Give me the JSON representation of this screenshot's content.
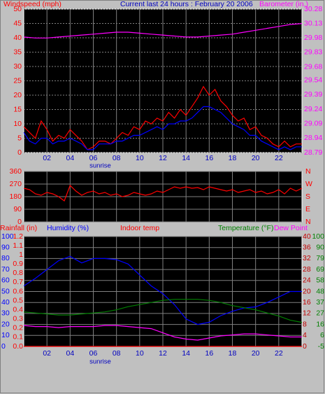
{
  "chart_data": [
    {
      "type": "line",
      "title": "Current last 24 hours : February 20 2006",
      "xlim": [
        0,
        24
      ],
      "xticks": [
        {
          "value": 2,
          "label": "02"
        },
        {
          "value": 4,
          "label": "04"
        },
        {
          "value": 6,
          "label": "06"
        },
        {
          "value": 8,
          "label": "08"
        },
        10,
        12,
        14,
        16,
        18,
        20,
        22
      ],
      "ylim": [
        0,
        50
      ],
      "yticks": [
        0,
        5,
        10,
        15,
        20,
        25,
        30,
        35,
        40,
        45,
        50
      ],
      "y2lim": [
        28.79,
        30.28
      ],
      "y2ticks": [
        28.79,
        28.94,
        29.09,
        29.24,
        29.39,
        29.54,
        29.68,
        29.83,
        29.98,
        30.13,
        30.28
      ],
      "annotation": {
        "text": "sunrise",
        "x": 6.6
      },
      "series": [
        {
          "name": "Windspeed (mph)",
          "color": "#ff0000",
          "x": [
            0,
            0.5,
            1,
            1.5,
            2,
            2.5,
            3,
            3.5,
            4,
            4.5,
            5,
            5.5,
            6,
            6.5,
            7,
            7.5,
            8,
            8.5,
            9,
            9.5,
            10,
            10.5,
            11,
            11.5,
            12,
            12.5,
            13,
            13.5,
            14,
            14.5,
            15,
            15.5,
            16,
            16.5,
            17,
            17.5,
            18,
            18.5,
            19,
            19.5,
            20,
            20.5,
            21,
            21.5,
            22,
            22.5,
            23,
            23.5,
            24
          ],
          "values": [
            9,
            7,
            5,
            11,
            8,
            4,
            6,
            5,
            8,
            6,
            4,
            1,
            2,
            4,
            4,
            3,
            5,
            7,
            6,
            9,
            8,
            11,
            10,
            12,
            11,
            14,
            12,
            15,
            13,
            16,
            19,
            23,
            20,
            22,
            18,
            16,
            13,
            11,
            12,
            8,
            9,
            6,
            5,
            3,
            2,
            4,
            2,
            3,
            3
          ]
        },
        {
          "color": "#0000ff",
          "x": [
            0,
            0.5,
            1,
            1.5,
            2,
            2.5,
            3,
            3.5,
            4,
            4.5,
            5,
            5.5,
            6,
            6.5,
            7,
            7.5,
            8,
            8.5,
            9,
            9.5,
            10,
            10.5,
            11,
            11.5,
            12,
            12.5,
            13,
            13.5,
            14,
            14.5,
            15,
            15.5,
            16,
            16.5,
            17,
            17.5,
            18,
            18.5,
            19,
            19.5,
            20,
            20.5,
            21,
            21.5,
            22,
            22.5,
            23,
            23.5,
            24
          ],
          "values": [
            7,
            4,
            3,
            5,
            5,
            3,
            4,
            4,
            5,
            4,
            3,
            1,
            1,
            3,
            3,
            3,
            4,
            4,
            5,
            6,
            6,
            7,
            8,
            9,
            8,
            10,
            10,
            11,
            11,
            12,
            14,
            16,
            16,
            15,
            14,
            12,
            10,
            9,
            8,
            6,
            6,
            4,
            3,
            2,
            1,
            2,
            1,
            2,
            2
          ]
        },
        {
          "name": "Barometer (in.)",
          "color": "#ff00ff",
          "axis": "y2",
          "x": [
            0,
            1,
            2,
            3,
            4,
            5,
            6,
            7,
            8,
            9,
            10,
            11,
            12,
            13,
            14,
            15,
            16,
            17,
            18,
            19,
            20,
            21,
            22,
            23,
            24
          ],
          "values": [
            29.99,
            29.98,
            29.98,
            29.99,
            30,
            30.01,
            30.02,
            30.03,
            30.04,
            30.04,
            30.03,
            30.02,
            30.01,
            30,
            29.99,
            29.99,
            30,
            30.01,
            30.02,
            30.04,
            30.06,
            30.08,
            30.1,
            30.12,
            30.13
          ]
        }
      ]
    },
    {
      "type": "line",
      "xlim": [
        0,
        24
      ],
      "xgrid": [
        2,
        4,
        6,
        8,
        10,
        12,
        14,
        16,
        18,
        20,
        22
      ],
      "ylim": [
        0,
        360
      ],
      "yticks": [
        0,
        90,
        180,
        270,
        360
      ],
      "y2lim": [
        0,
        360
      ],
      "y2ticks": [
        {
          "value": 360,
          "label": "N"
        },
        {
          "value": 270,
          "label": "W"
        },
        {
          "value": 180,
          "label": "S"
        },
        {
          "value": 90,
          "label": "E"
        },
        {
          "value": 0,
          "label": "N"
        }
      ],
      "series": [
        {
          "color": "#ff0000",
          "x": [
            0,
            0.5,
            1,
            1.5,
            2,
            2.5,
            3,
            3.5,
            4,
            4.5,
            5,
            5.5,
            6,
            6.5,
            7,
            7.5,
            8,
            8.5,
            9,
            9.5,
            10,
            10.5,
            11,
            11.5,
            12,
            12.5,
            13,
            13.5,
            14,
            14.5,
            15,
            15.5,
            16,
            16.5,
            17,
            17.5,
            18,
            18.5,
            19,
            19.5,
            20,
            20.5,
            21,
            21.5,
            22,
            22.5,
            23,
            23.5,
            24
          ],
          "values": [
            240,
            230,
            200,
            190,
            210,
            200,
            180,
            150,
            260,
            220,
            190,
            210,
            220,
            200,
            210,
            190,
            200,
            180,
            190,
            210,
            200,
            190,
            200,
            220,
            210,
            230,
            250,
            240,
            250,
            240,
            245,
            230,
            250,
            240,
            230,
            220,
            230,
            210,
            220,
            230,
            210,
            220,
            200,
            210,
            230,
            200,
            240,
            220,
            240
          ]
        }
      ]
    },
    {
      "type": "line",
      "xlim": [
        0,
        24
      ],
      "xticks": [
        {
          "value": 2,
          "label": "02"
        },
        {
          "value": 4,
          "label": "04"
        },
        {
          "value": 6,
          "label": "06"
        },
        {
          "value": 8,
          "label": "08"
        },
        10,
        12,
        14,
        16,
        18,
        20,
        22
      ],
      "annotation": {
        "text": "sunrise",
        "x": 6.6
      },
      "ylim": [
        0,
        100
      ],
      "yticks": [
        0,
        10,
        20,
        30,
        40,
        50,
        60,
        70,
        80,
        90,
        100
      ],
      "y2lim": [
        -5,
        100
      ],
      "y2ticks": [
        -5,
        {
          "value": 5.5,
          "label": "6"
        },
        16,
        {
          "value": 26.5,
          "label": "27"
        },
        37,
        {
          "value": 47.5,
          "label": "48"
        },
        58,
        {
          "value": 68.5,
          "label": "69"
        },
        79,
        {
          "value": 89.5,
          "label": "90"
        },
        100
      ],
      "y3lim": [
        0,
        1.2
      ],
      "y3ticks": [
        {
          "value": 0,
          "label": "0.0"
        },
        0.1,
        0.2,
        0.3,
        0.4,
        0.5,
        0.6,
        0.7,
        0.8,
        0.9,
        1,
        1.1,
        1.2
      ],
      "y4label": "Indoor temp",
      "y4lim": [
        0,
        40
      ],
      "y4ticks": [
        0,
        4,
        8,
        12,
        16,
        20,
        24,
        28,
        32,
        36,
        40
      ],
      "series": [
        {
          "name": "Rainfall (in)",
          "color": "#ff0000",
          "axis": "y3",
          "x": [
            0,
            1,
            2,
            3,
            4,
            5,
            6,
            7,
            8,
            9,
            10,
            11,
            12,
            13,
            14,
            15,
            16,
            17,
            18,
            19,
            20,
            21,
            22,
            23,
            24
          ],
          "values": [
            0,
            0,
            0,
            0,
            0,
            0,
            0,
            0,
            0,
            0,
            0,
            0,
            0,
            0,
            0,
            0,
            0,
            0,
            0,
            0,
            0,
            0,
            0,
            0,
            0
          ]
        },
        {
          "name": "Humidity (%)",
          "color": "#0000ff",
          "x": [
            0,
            1,
            2,
            3,
            4,
            5,
            6,
            7,
            8,
            9,
            10,
            11,
            12,
            13,
            14,
            15,
            16,
            17,
            18,
            19,
            20,
            21,
            22,
            23,
            24
          ],
          "values": [
            55,
            62,
            70,
            78,
            82,
            76,
            80,
            80,
            79,
            75,
            65,
            55,
            48,
            38,
            25,
            20,
            22,
            28,
            32,
            35,
            36,
            40,
            45,
            50,
            50
          ]
        },
        {
          "name": "Temperature (°F)",
          "color": "#008000",
          "axis": "y2",
          "x": [
            0,
            1,
            2,
            3,
            4,
            5,
            6,
            7,
            8,
            9,
            10,
            11,
            12,
            13,
            14,
            15,
            16,
            17,
            18,
            19,
            20,
            21,
            22,
            23,
            24
          ],
          "values": [
            28,
            27,
            26,
            25,
            25,
            26,
            27,
            28,
            30,
            33,
            35,
            37,
            39,
            40,
            40,
            40,
            39,
            37,
            34,
            32,
            30,
            27,
            24,
            20,
            18
          ]
        },
        {
          "name": "Dew Point",
          "color": "#ff00ff",
          "axis": "y2",
          "x": [
            0,
            1,
            2,
            3,
            4,
            5,
            6,
            7,
            8,
            9,
            10,
            11,
            12,
            13,
            14,
            15,
            16,
            17,
            18,
            19,
            20,
            21,
            22,
            23,
            24
          ],
          "values": [
            15,
            14,
            14,
            13,
            14,
            14,
            14,
            15,
            15,
            14,
            13,
            12,
            8,
            4,
            2,
            1,
            3,
            5,
            6,
            7,
            7,
            6,
            5,
            4,
            4
          ]
        }
      ]
    }
  ]
}
